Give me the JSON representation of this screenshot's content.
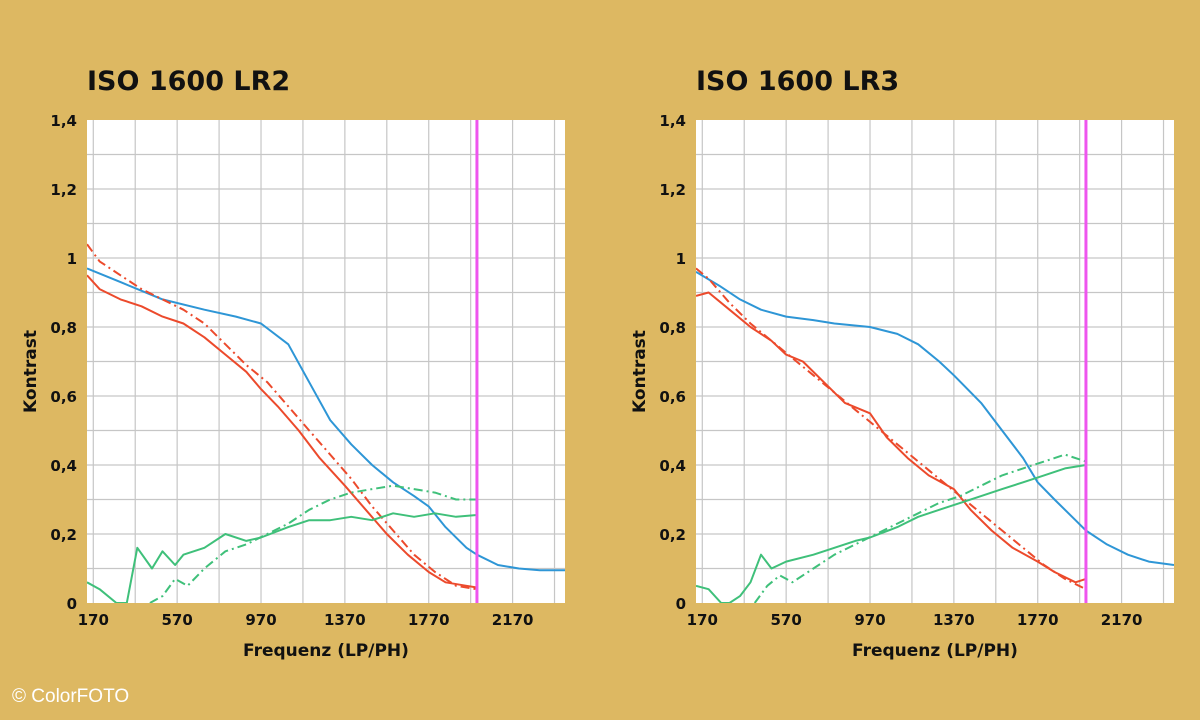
{
  "credit": "© ColorFOTO",
  "colors": {
    "background": "#ddb862",
    "plot_bg": "#ffffff",
    "grid": "#c6c6c6",
    "blue": "#2e96d6",
    "red": "#ec4a2c",
    "green": "#3fc07a",
    "magenta": "#ee55ee"
  },
  "chart_data": [
    {
      "type": "line",
      "title": "ISO 1600 LR2",
      "xlabel": "Frequenz (LP/PH)",
      "ylabel": "Kontrast",
      "xlim": [
        140,
        2420
      ],
      "ylim": [
        0,
        1.4
      ],
      "x_ticks": [
        170,
        570,
        970,
        1370,
        1770,
        2170
      ],
      "x_tick_labels": [
        "170",
        "570",
        "970",
        "1370",
        "1770",
        "2170"
      ],
      "y_ticks": [
        0,
        0.2,
        0.4,
        0.6,
        0.8,
        1,
        1.2,
        1.4
      ],
      "y_tick_labels": [
        "0",
        "0,2",
        "0,4",
        "0,6",
        "0,8",
        "1",
        "1,2",
        "1,4"
      ],
      "marker_line_x": 2000,
      "series": [
        {
          "name": "blue-solid",
          "color": "blue",
          "dash": "solid",
          "x": [
            140,
            300,
            500,
            700,
            850,
            970,
            1100,
            1200,
            1300,
            1400,
            1500,
            1600,
            1700,
            1770,
            1850,
            1950,
            2000,
            2100,
            2200,
            2300,
            2420
          ],
          "y": [
            0.97,
            0.93,
            0.88,
            0.85,
            0.83,
            0.81,
            0.75,
            0.64,
            0.53,
            0.46,
            0.4,
            0.35,
            0.31,
            0.28,
            0.22,
            0.16,
            0.14,
            0.11,
            0.1,
            0.095,
            0.095
          ]
        },
        {
          "name": "red-solid",
          "color": "red",
          "dash": "solid",
          "x": [
            140,
            200,
            300,
            400,
            500,
            600,
            700,
            800,
            900,
            970,
            1050,
            1150,
            1250,
            1370,
            1470,
            1570,
            1670,
            1770,
            1850,
            1950,
            2000
          ],
          "y": [
            0.95,
            0.91,
            0.88,
            0.86,
            0.83,
            0.81,
            0.77,
            0.72,
            0.67,
            0.62,
            0.57,
            0.5,
            0.42,
            0.34,
            0.27,
            0.2,
            0.14,
            0.09,
            0.06,
            0.05,
            0.045
          ]
        },
        {
          "name": "red-dashdot",
          "color": "red",
          "dash": "dashdot",
          "x": [
            140,
            200,
            300,
            400,
            500,
            600,
            700,
            800,
            900,
            1000,
            1100,
            1200,
            1300,
            1400,
            1500,
            1600,
            1700,
            1800,
            1900,
            2000
          ],
          "y": [
            1.04,
            0.99,
            0.95,
            0.91,
            0.88,
            0.85,
            0.81,
            0.75,
            0.69,
            0.64,
            0.57,
            0.5,
            0.43,
            0.36,
            0.28,
            0.21,
            0.14,
            0.09,
            0.05,
            0.04
          ]
        },
        {
          "name": "green-solid",
          "color": "green",
          "dash": "solid",
          "x": [
            140,
            200,
            280,
            330,
            380,
            450,
            500,
            560,
            600,
            700,
            800,
            900,
            970,
            1100,
            1200,
            1300,
            1400,
            1500,
            1600,
            1700,
            1800,
            1900,
            2000
          ],
          "y": [
            0.06,
            0.04,
            0.0,
            0.0,
            0.16,
            0.1,
            0.15,
            0.11,
            0.14,
            0.16,
            0.2,
            0.18,
            0.19,
            0.22,
            0.24,
            0.24,
            0.25,
            0.24,
            0.26,
            0.25,
            0.26,
            0.25,
            0.255
          ]
        },
        {
          "name": "green-dashdot",
          "color": "green",
          "dash": "dashdot",
          "x": [
            440,
            500,
            560,
            620,
            700,
            800,
            900,
            1000,
            1100,
            1200,
            1300,
            1400,
            1500,
            1600,
            1700,
            1800,
            1900,
            2000
          ],
          "y": [
            0.0,
            0.02,
            0.07,
            0.05,
            0.1,
            0.15,
            0.17,
            0.2,
            0.23,
            0.27,
            0.3,
            0.32,
            0.33,
            0.34,
            0.33,
            0.32,
            0.3,
            0.3
          ]
        }
      ]
    },
    {
      "type": "line",
      "title": "ISO 1600 LR3",
      "xlabel": "Frequenz (LP/PH)",
      "ylabel": "Kontrast",
      "xlim": [
        140,
        2420
      ],
      "ylim": [
        0,
        1.4
      ],
      "x_ticks": [
        170,
        570,
        970,
        1370,
        1770,
        2170
      ],
      "x_tick_labels": [
        "170",
        "570",
        "970",
        "1370",
        "1770",
        "2170"
      ],
      "y_ticks": [
        0,
        0.2,
        0.4,
        0.6,
        0.8,
        1,
        1.2,
        1.4
      ],
      "y_tick_labels": [
        "0",
        "0,2",
        "0,4",
        "0,6",
        "0,8",
        "1",
        "1,2",
        "1,4"
      ],
      "marker_line_x": 2000,
      "series": [
        {
          "name": "blue-solid",
          "color": "blue",
          "dash": "solid",
          "x": [
            140,
            250,
            350,
            450,
            570,
            700,
            800,
            970,
            1100,
            1200,
            1300,
            1370,
            1500,
            1600,
            1700,
            1770,
            1850,
            1950,
            2000,
            2100,
            2200,
            2300,
            2420
          ],
          "y": [
            0.96,
            0.92,
            0.88,
            0.85,
            0.83,
            0.82,
            0.81,
            0.8,
            0.78,
            0.75,
            0.7,
            0.66,
            0.58,
            0.5,
            0.42,
            0.35,
            0.3,
            0.24,
            0.21,
            0.17,
            0.14,
            0.12,
            0.11
          ]
        },
        {
          "name": "red-solid",
          "color": "red",
          "dash": "solid",
          "x": [
            140,
            200,
            300,
            400,
            500,
            570,
            650,
            750,
            850,
            970,
            1050,
            1150,
            1250,
            1370,
            1450,
            1550,
            1650,
            1770,
            1850,
            1950,
            2000
          ],
          "y": [
            0.89,
            0.9,
            0.85,
            0.8,
            0.76,
            0.72,
            0.7,
            0.64,
            0.58,
            0.55,
            0.48,
            0.42,
            0.37,
            0.33,
            0.27,
            0.21,
            0.16,
            0.12,
            0.09,
            0.06,
            0.07
          ]
        },
        {
          "name": "red-dashdot",
          "color": "red",
          "dash": "dashdot",
          "x": [
            140,
            200,
            300,
            400,
            500,
            600,
            700,
            800,
            900,
            1000,
            1100,
            1200,
            1300,
            1400,
            1500,
            1600,
            1700,
            1800,
            1900,
            2000
          ],
          "y": [
            0.97,
            0.94,
            0.87,
            0.81,
            0.76,
            0.71,
            0.66,
            0.61,
            0.56,
            0.51,
            0.46,
            0.41,
            0.36,
            0.31,
            0.26,
            0.21,
            0.16,
            0.11,
            0.07,
            0.04
          ]
        },
        {
          "name": "green-solid",
          "color": "green",
          "dash": "solid",
          "x": [
            140,
            200,
            260,
            300,
            350,
            400,
            450,
            500,
            570,
            700,
            800,
            900,
            970,
            1100,
            1200,
            1300,
            1400,
            1500,
            1600,
            1700,
            1800,
            1900,
            2000
          ],
          "y": [
            0.05,
            0.04,
            0.0,
            0.0,
            0.02,
            0.06,
            0.14,
            0.1,
            0.12,
            0.14,
            0.16,
            0.18,
            0.19,
            0.22,
            0.25,
            0.27,
            0.29,
            0.31,
            0.33,
            0.35,
            0.37,
            0.39,
            0.4
          ]
        },
        {
          "name": "green-dashdot",
          "color": "green",
          "dash": "dashdot",
          "x": [
            420,
            480,
            540,
            600,
            700,
            800,
            900,
            1000,
            1100,
            1200,
            1300,
            1400,
            1500,
            1600,
            1700,
            1800,
            1900,
            2000
          ],
          "y": [
            0.0,
            0.05,
            0.08,
            0.06,
            0.1,
            0.14,
            0.17,
            0.2,
            0.23,
            0.26,
            0.29,
            0.31,
            0.34,
            0.37,
            0.39,
            0.41,
            0.43,
            0.41
          ]
        }
      ]
    }
  ]
}
